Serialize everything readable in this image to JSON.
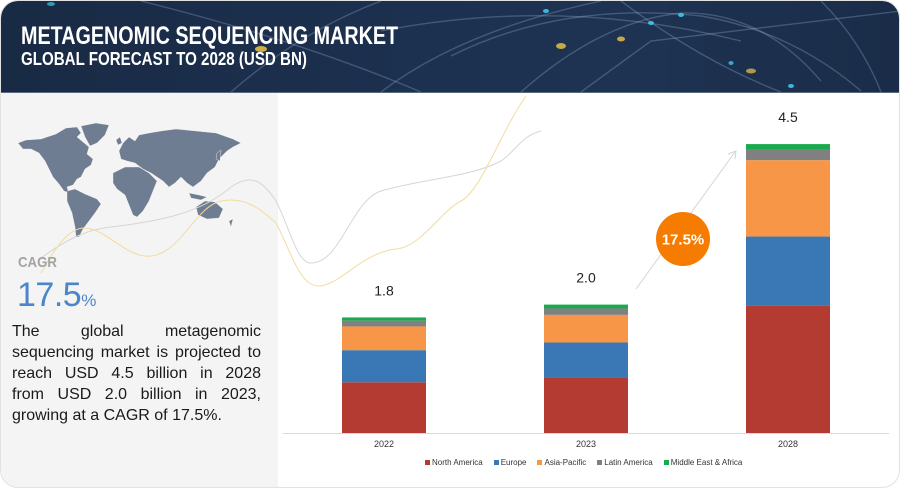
{
  "header": {
    "title": "METAGENOMIC SEQUENCING MARKET",
    "subtitle": "GLOBAL FORECAST TO 2028 (USD BN)"
  },
  "summary": {
    "cagr_label": "CAGR",
    "cagr_value": "17.5",
    "cagr_unit": "%",
    "description_lines": [
      "The global metagenomic",
      "sequencing market is projected to",
      "reach USD 4.5 billion in 2028",
      "from USD 2.0 billion in 2023,",
      "growing at a CAGR of 17.5%."
    ]
  },
  "chart_data": {
    "type": "bar",
    "stacked": true,
    "title": "METAGENOMIC SEQUENCING MARKET",
    "subtitle": "GLOBAL FORECAST TO 2028 (USD BN)",
    "xlabel": "",
    "ylabel": "",
    "ylim": [
      0,
      5
    ],
    "grid": false,
    "legend_position": "bottom",
    "categories": [
      "2022",
      "2023",
      "2028"
    ],
    "totals": [
      1.8,
      2.0,
      4.5
    ],
    "total_labels": [
      "1.8",
      "2.0",
      "4.5"
    ],
    "series": [
      {
        "name": "North America",
        "color": "#b33b32",
        "values": [
          0.79,
          0.87,
          1.99
        ]
      },
      {
        "name": "Europe",
        "color": "#3a78b5",
        "values": [
          0.5,
          0.54,
          1.07
        ]
      },
      {
        "name": "Asia-Pacific",
        "color": "#f79646",
        "values": [
          0.37,
          0.43,
          1.19
        ]
      },
      {
        "name": "Latin America",
        "color": "#808080",
        "values": [
          0.09,
          0.1,
          0.16
        ]
      },
      {
        "name": "Middle East & Africa",
        "color": "#19a94f",
        "values": [
          0.05,
          0.06,
          0.09
        ]
      }
    ],
    "annotation": {
      "label": "17.5%",
      "color": "#f57c00"
    }
  }
}
